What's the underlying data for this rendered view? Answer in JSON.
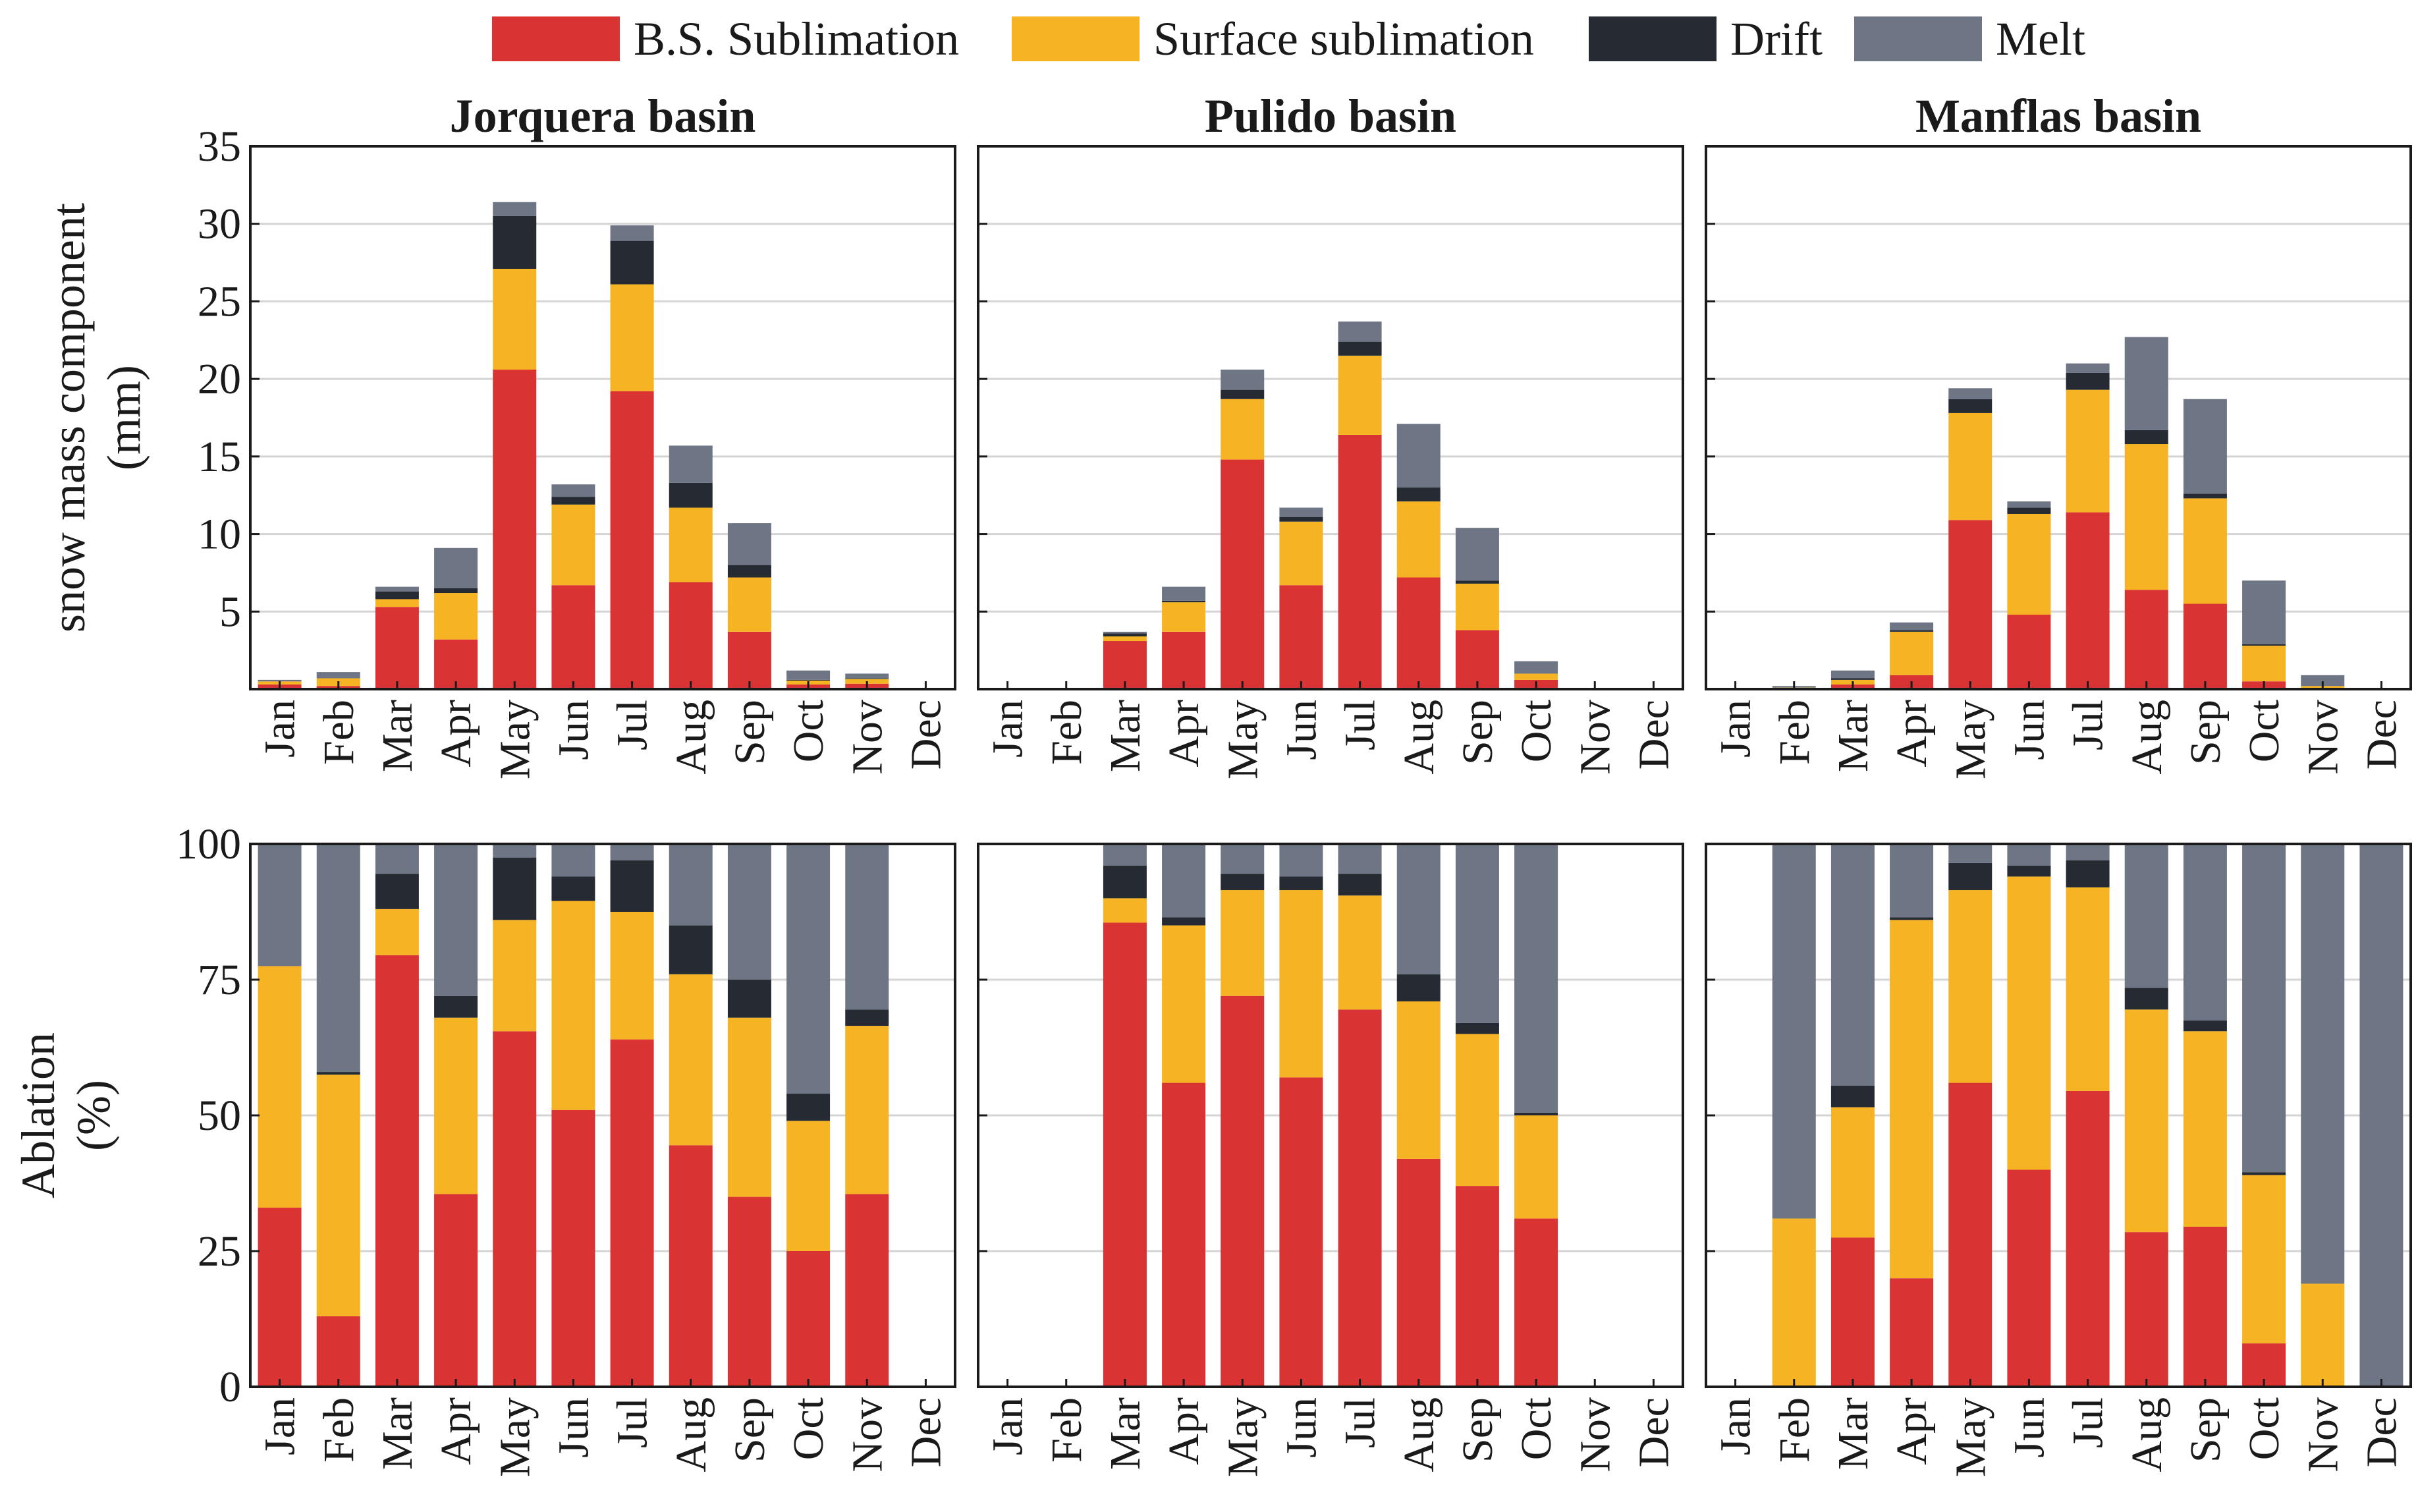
{
  "chart_data": {
    "type": "bar",
    "stacked": true,
    "colors": {
      "bs_sublimation": "#d93333",
      "surface_sublimation": "#f6b323",
      "drift": "#262b33",
      "melt": "#6e7585"
    },
    "legend": [
      {
        "key": "bs_sublimation",
        "label": "B.S. Sublimation"
      },
      {
        "key": "surface_sublimation",
        "label": "Surface sublimation"
      },
      {
        "key": "drift",
        "label": "Drift"
      },
      {
        "key": "melt",
        "label": "Melt"
      }
    ],
    "categories": [
      "Jan",
      "Feb",
      "Mar",
      "Apr",
      "May",
      "Jun",
      "Jul",
      "Aug",
      "Sep",
      "Oct",
      "Nov",
      "Dec"
    ],
    "top_row": {
      "ylabel_line1": "snow mass component",
      "ylabel_line2": "(mm)",
      "ylim": [
        0,
        35
      ],
      "yticks": [
        5,
        10,
        15,
        20,
        25,
        30,
        35
      ]
    },
    "bottom_row": {
      "ylabel_line1": "Ablation",
      "ylabel_line2": "(%)",
      "ylim": [
        0,
        100
      ],
      "yticks": [
        0,
        25,
        50,
        75,
        100
      ]
    },
    "panels": [
      {
        "title": "Jorquera basin",
        "mass": {
          "bs_sublimation": [
            0.3,
            0.2,
            5.3,
            3.2,
            20.6,
            6.7,
            19.2,
            6.9,
            3.7,
            0.3,
            0.35,
            0
          ],
          "surface_sublimation": [
            0.2,
            0.5,
            0.5,
            3.0,
            6.5,
            5.2,
            6.9,
            4.8,
            3.5,
            0.25,
            0.3,
            0
          ],
          "drift": [
            0,
            0,
            0.5,
            0.3,
            3.4,
            0.5,
            2.8,
            1.6,
            0.8,
            0.05,
            0.03,
            0
          ],
          "melt": [
            0.1,
            0.4,
            0.3,
            2.6,
            0.9,
            0.8,
            1.0,
            2.4,
            2.7,
            0.6,
            0.32,
            0
          ]
        },
        "ablation": {
          "bs_sublimation": [
            33,
            13,
            79.5,
            35.5,
            65.5,
            51,
            64,
            44.5,
            35,
            25,
            35.5,
            0
          ],
          "surface_sublimation": [
            44.5,
            44.5,
            8.5,
            32.5,
            20.5,
            38.5,
            23.5,
            31.5,
            33,
            24,
            31,
            0
          ],
          "drift": [
            0,
            0.5,
            6.5,
            4,
            11.5,
            4.5,
            9.5,
            9,
            7,
            5,
            3,
            0
          ],
          "melt": [
            22.5,
            42,
            5.5,
            28,
            2.5,
            6,
            3,
            15,
            25,
            46,
            30.5,
            0
          ]
        }
      },
      {
        "title": "Pulido basin",
        "mass": {
          "bs_sublimation": [
            0,
            0,
            3.1,
            3.7,
            14.8,
            6.7,
            16.4,
            7.2,
            3.8,
            0.6,
            0,
            0
          ],
          "surface_sublimation": [
            0,
            0,
            0.3,
            1.9,
            3.9,
            4.1,
            5.1,
            4.9,
            3.0,
            0.4,
            0,
            0
          ],
          "drift": [
            0,
            0,
            0.2,
            0.1,
            0.6,
            0.3,
            0.9,
            0.9,
            0.2,
            0,
            0,
            0
          ],
          "melt": [
            0,
            0,
            0.1,
            0.9,
            1.3,
            0.6,
            1.3,
            4.1,
            3.4,
            0.8,
            0,
            0
          ]
        },
        "ablation": {
          "bs_sublimation": [
            0,
            0,
            85.5,
            56,
            72,
            57,
            69.5,
            42,
            37,
            31,
            0,
            0
          ],
          "surface_sublimation": [
            0,
            0,
            4.5,
            29,
            19.5,
            34.5,
            21,
            29,
            28,
            19,
            0,
            0
          ],
          "drift": [
            0,
            0,
            6,
            1.5,
            3,
            2.5,
            4,
            5,
            2,
            0.5,
            0,
            0
          ],
          "melt": [
            0,
            0,
            4,
            13.5,
            5.5,
            6,
            5.5,
            24,
            33,
            49.5,
            0,
            0
          ]
        }
      },
      {
        "title": "Manflas basin",
        "mass": {
          "bs_sublimation": [
            0,
            0,
            0.3,
            0.9,
            10.9,
            4.8,
            11.4,
            6.4,
            5.5,
            0.5,
            0,
            0
          ],
          "surface_sublimation": [
            0,
            0.1,
            0.3,
            2.8,
            6.9,
            6.5,
            7.9,
            9.4,
            6.8,
            2.3,
            0.2,
            0
          ],
          "drift": [
            0,
            0,
            0.1,
            0.1,
            0.9,
            0.4,
            1.1,
            0.9,
            0.3,
            0.1,
            0,
            0
          ],
          "melt": [
            0,
            0.1,
            0.5,
            0.5,
            0.7,
            0.4,
            0.6,
            6.0,
            6.1,
            4.1,
            0.7,
            0.05
          ]
        },
        "ablation": {
          "bs_sublimation": [
            0,
            0,
            27.5,
            20,
            56,
            40,
            54.5,
            28.5,
            29.5,
            8,
            0,
            0
          ],
          "surface_sublimation": [
            0,
            31,
            24,
            66,
            35.5,
            54,
            37.5,
            41,
            36,
            31,
            19,
            0
          ],
          "drift": [
            0,
            0,
            4,
            0.5,
            5,
            2,
            5,
            4,
            2,
            0.5,
            0,
            0
          ],
          "melt": [
            0,
            69,
            44.5,
            13.5,
            3.5,
            4,
            3,
            26.5,
            32.5,
            60.5,
            81,
            100
          ]
        }
      }
    ]
  }
}
